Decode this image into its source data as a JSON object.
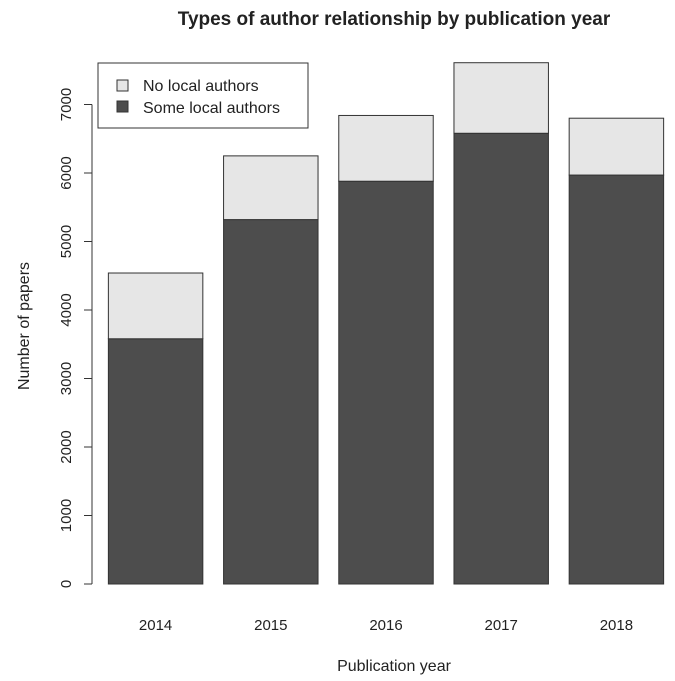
{
  "chart_data": {
    "type": "bar",
    "stacked": true,
    "title": "Types of author relationship by publication year",
    "xlabel": "Publication year",
    "ylabel": "Number of papers",
    "categories": [
      "2014",
      "2015",
      "2016",
      "2017",
      "2018"
    ],
    "series": [
      {
        "name": "Some local authors",
        "color": "#4d4d4d",
        "values": [
          3580,
          5320,
          5880,
          6580,
          5970
        ]
      },
      {
        "name": "No local authors",
        "color": "#e6e6e6",
        "values": [
          960,
          930,
          960,
          1030,
          830
        ]
      }
    ],
    "ylim": [
      0,
      7650
    ],
    "yticks": [
      "0",
      "1000",
      "2000",
      "3000",
      "4000",
      "5000",
      "6000",
      "7000"
    ],
    "legend": {
      "position": "top-left",
      "entries": [
        "No local authors",
        "Some local authors"
      ]
    },
    "grid": false
  }
}
